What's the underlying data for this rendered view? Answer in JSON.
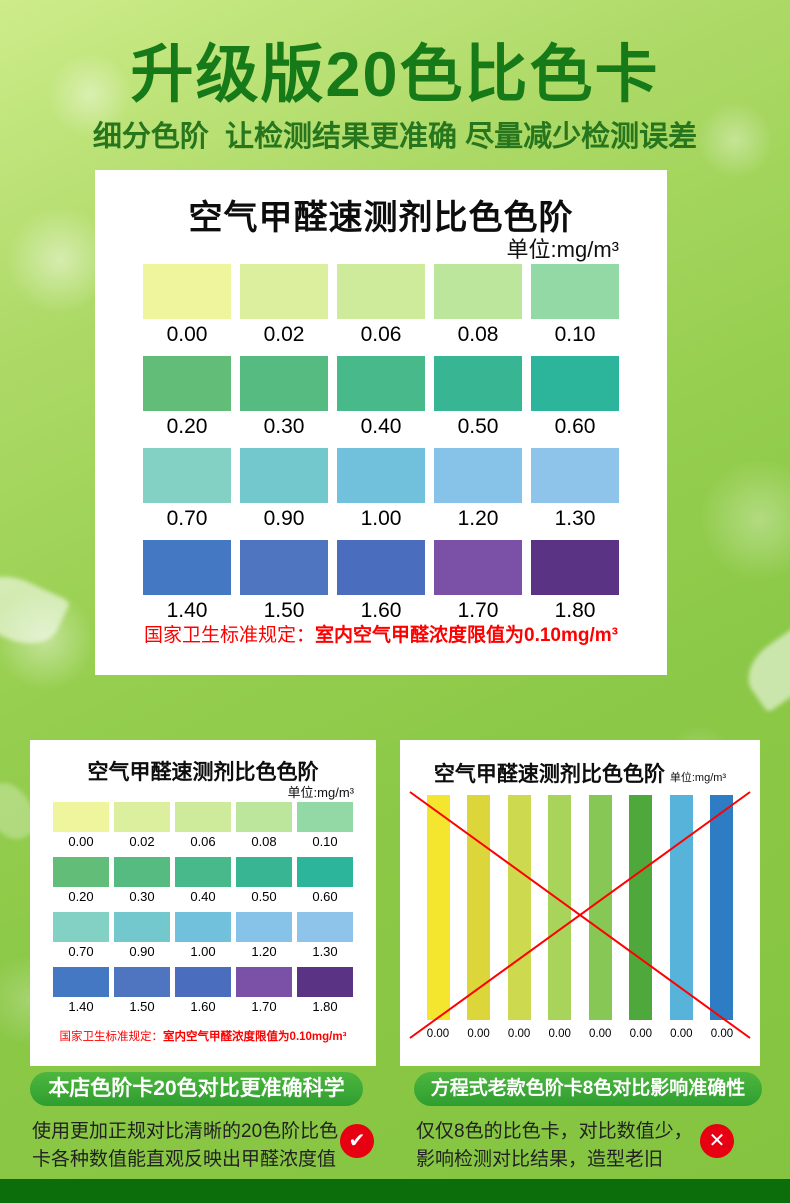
{
  "header": {
    "title": "升级版20色比色卡",
    "subtitle": "细分色阶  让检测结果更准确 尽量减少检测误差"
  },
  "chart_data": [
    {
      "type": "table",
      "title": "空气甲醛速测剂比色色阶",
      "unit_label": "单位:mg/m³",
      "note_prefix": "国家卫生标准规定：",
      "note_value": "室内空气甲醛浓度限值为0.10mg/m³",
      "rows": [
        {
          "values": [
            "0.00",
            "0.02",
            "0.06",
            "0.08",
            "0.10"
          ],
          "colors": [
            "#eff59d",
            "#dcef9f",
            "#cdeb9b",
            "#bce69b",
            "#92d9a6"
          ]
        },
        {
          "values": [
            "0.20",
            "0.30",
            "0.40",
            "0.50",
            "0.60"
          ],
          "colors": [
            "#61bd78",
            "#55bb80",
            "#47b98a",
            "#38b694",
            "#2db59c"
          ]
        },
        {
          "values": [
            "0.70",
            "0.90",
            "1.00",
            "1.20",
            "1.30"
          ],
          "colors": [
            "#83d0c5",
            "#72c8cd",
            "#72c1dc",
            "#87c3e8",
            "#8fc4ea"
          ]
        },
        {
          "values": [
            "1.40",
            "1.50",
            "1.60",
            "1.70",
            "1.80"
          ],
          "colors": [
            "#4578c3",
            "#4f75c1",
            "#4a6dbd",
            "#7b51a7",
            "#5a3384"
          ]
        }
      ]
    },
    {
      "type": "bar",
      "title": "空气甲醛速测剂比色色阶",
      "unit_label": "单位:mg/m³",
      "values": [
        "0.00",
        "0.00",
        "0.00",
        "0.00",
        "0.00",
        "0.00",
        "0.00",
        "0.00"
      ],
      "colors": [
        "#f4e62e",
        "#ddd63a",
        "#cdd94e",
        "#a8d45c",
        "#86c756",
        "#4fa83c",
        "#58b3db",
        "#2e7cc3"
      ]
    }
  ],
  "badges": {
    "new_label": "本店色阶卡20色对比更准确科学",
    "old_label": "方程式老款色阶卡8色对比影响准确性"
  },
  "descriptions": {
    "new_line1": "使用更加正规对比清晰的20色阶比色",
    "new_line2": "卡各种数值能直观反映出甲醛浓度值",
    "old_line1": "仅仅8色的比色卡，对比数值少，",
    "old_line2": "影响检测对比结果，造型老旧"
  },
  "icons": {
    "check": "✔",
    "cross": "✕"
  },
  "colors": {
    "title_green": "#177a18",
    "badge_green": "#2f9e30",
    "note_red": "#ff0000",
    "mark_red": "#e60012",
    "bottom_bar_green": "#0b6e0b"
  }
}
